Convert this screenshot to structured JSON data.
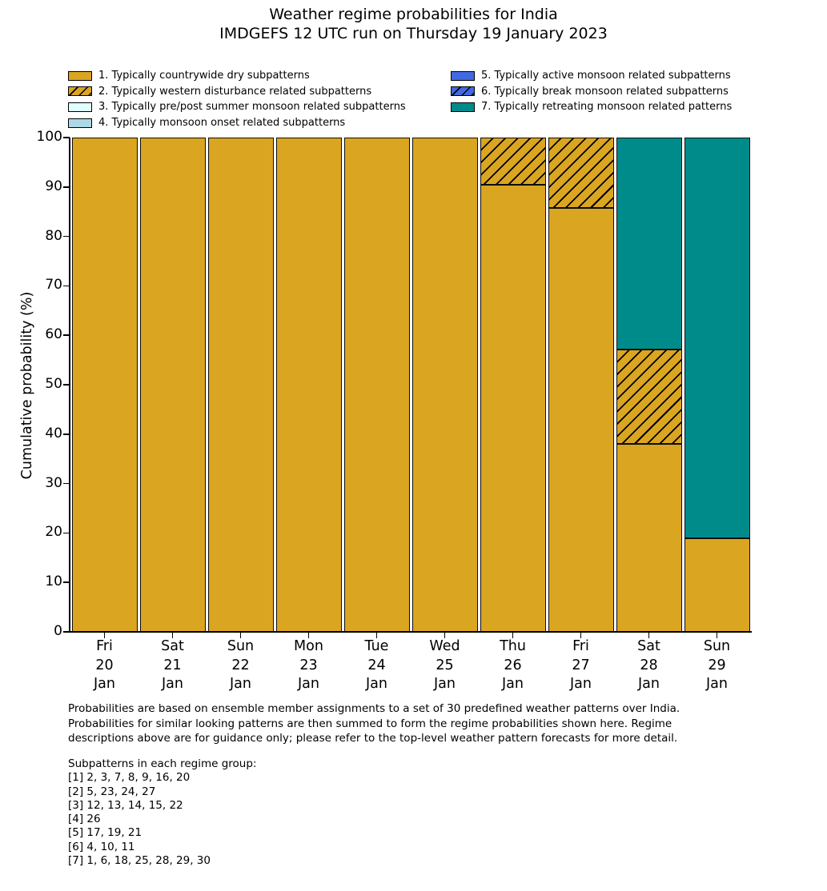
{
  "header": {
    "title_line1": "Weather regime probabilities for India",
    "title_line2": "IMDGEFS 12 UTC run on Thursday 19 January 2023"
  },
  "colors": {
    "dry_gold": "#DAA520",
    "pre_post_monsoon": "#E0FFFF",
    "monsoon_onset": "#ADD8E6",
    "active_monsoon": "#4169E1",
    "retreating_teal": "#008B8B",
    "edge": "#000000"
  },
  "legend": {
    "items": [
      {
        "label": "1. Typically countrywide dry subpatterns",
        "color": "#DAA520",
        "hatch": false,
        "column": "left"
      },
      {
        "label": "2. Typically western disturbance related subpatterns",
        "color": "#DAA520",
        "hatch": true,
        "column": "left"
      },
      {
        "label": "3. Typically pre/post summer monsoon related subpatterns",
        "color": "#E0FFFF",
        "hatch": false,
        "column": "left"
      },
      {
        "label": "4. Typically monsoon onset related subpatterns",
        "color": "#ADD8E6",
        "hatch": false,
        "column": "left"
      },
      {
        "label": "5. Typically active monsoon related subpatterns",
        "color": "#4169E1",
        "hatch": false,
        "column": "right"
      },
      {
        "label": "6. Typically break monsoon related subpatterns",
        "color": "#4169E1",
        "hatch": true,
        "column": "right"
      },
      {
        "label": "7. Typically retreating monsoon related patterns",
        "color": "#008B8B",
        "hatch": false,
        "column": "right"
      }
    ]
  },
  "chart_data": {
    "type": "bar",
    "stacked": true,
    "title": "Weather regime probabilities for India",
    "subtitle": "IMDGEFS 12 UTC run on Thursday 19 January 2023",
    "xlabel": "",
    "ylabel": "Cumulative probability (%)",
    "ylim": [
      0,
      100
    ],
    "yticks": [
      0,
      10,
      20,
      30,
      40,
      50,
      60,
      70,
      80,
      90,
      100
    ],
    "grid": false,
    "legend_position": "top, two columns, no frame",
    "categories": [
      {
        "day": "Fri",
        "date": "20",
        "month": "Jan"
      },
      {
        "day": "Sat",
        "date": "21",
        "month": "Jan"
      },
      {
        "day": "Sun",
        "date": "22",
        "month": "Jan"
      },
      {
        "day": "Mon",
        "date": "23",
        "month": "Jan"
      },
      {
        "day": "Tue",
        "date": "24",
        "month": "Jan"
      },
      {
        "day": "Wed",
        "date": "25",
        "month": "Jan"
      },
      {
        "day": "Thu",
        "date": "26",
        "month": "Jan"
      },
      {
        "day": "Fri",
        "date": "27",
        "month": "Jan"
      },
      {
        "day": "Sat",
        "date": "28",
        "month": "Jan"
      },
      {
        "day": "Sun",
        "date": "29",
        "month": "Jan"
      }
    ],
    "series": [
      {
        "name": "1. Typically countrywide dry subpatterns",
        "color": "#DAA520",
        "hatch": false,
        "values": [
          100,
          100,
          100,
          100,
          100,
          100,
          90.5,
          85.7,
          38.1,
          19.0
        ]
      },
      {
        "name": "2. Typically western disturbance related subpatterns",
        "color": "#DAA520",
        "hatch": true,
        "values": [
          0,
          0,
          0,
          0,
          0,
          0,
          9.5,
          14.3,
          19.0,
          0
        ]
      },
      {
        "name": "3. Typically pre/post summer monsoon related subpatterns",
        "color": "#E0FFFF",
        "hatch": false,
        "values": [
          0,
          0,
          0,
          0,
          0,
          0,
          0,
          0,
          0,
          0
        ]
      },
      {
        "name": "4. Typically monsoon onset related subpatterns",
        "color": "#ADD8E6",
        "hatch": false,
        "values": [
          0,
          0,
          0,
          0,
          0,
          0,
          0,
          0,
          0,
          0
        ]
      },
      {
        "name": "5. Typically active monsoon related subpatterns",
        "color": "#4169E1",
        "hatch": false,
        "values": [
          0,
          0,
          0,
          0,
          0,
          0,
          0,
          0,
          0,
          0
        ]
      },
      {
        "name": "6. Typically break monsoon related subpatterns",
        "color": "#4169E1",
        "hatch": true,
        "values": [
          0,
          0,
          0,
          0,
          0,
          0,
          0,
          0,
          0,
          0
        ]
      },
      {
        "name": "7. Typically retreating monsoon related patterns",
        "color": "#008B8B",
        "hatch": false,
        "values": [
          0,
          0,
          0,
          0,
          0,
          0,
          0,
          0,
          42.9,
          81.0
        ]
      }
    ]
  },
  "footer": {
    "lines": [
      "Probabilities are based on ensemble member assignments to a set of 30 predefined weather patterns over India.",
      "Probabilities for similar looking patterns are then summed to form the regime probabilities shown here. Regime",
      "descriptions above are for guidance only; please refer to the top-level weather pattern forecasts for more detail."
    ]
  },
  "subpatterns": {
    "heading": "Subpatterns in each regime group:",
    "groups": [
      {
        "id": "[1]",
        "members": "2, 3, 7, 8, 9, 16, 20"
      },
      {
        "id": "[2]",
        "members": "5, 23, 24, 27"
      },
      {
        "id": "[3]",
        "members": "12, 13, 14, 15, 22"
      },
      {
        "id": "[4]",
        "members": "26"
      },
      {
        "id": "[5]",
        "members": "17, 19, 21"
      },
      {
        "id": "[6]",
        "members": "4, 10, 11"
      },
      {
        "id": "[7]",
        "members": "1, 6, 18, 25, 28, 29, 30"
      }
    ]
  }
}
